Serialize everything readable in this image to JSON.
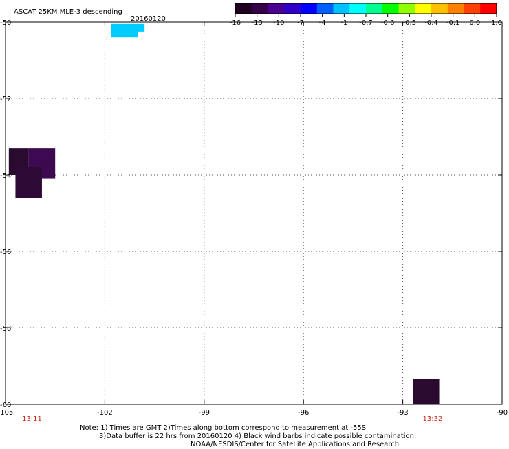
{
  "header": {
    "product": "ASCAT 25KM MLE-3 descending",
    "date": "20160120"
  },
  "colorbar": {
    "colors": [
      "#200020",
      "#360048",
      "#4a0090",
      "#3000c8",
      "#0000ff",
      "#0060ff",
      "#00c0ff",
      "#00ffff",
      "#00ff90",
      "#00ff00",
      "#90ff00",
      "#ffff00",
      "#ffc000",
      "#ff8000",
      "#ff4000",
      "#ff0000"
    ],
    "tick_labels": [
      "-16",
      "-13",
      "-10",
      "-7",
      "-4",
      "-1",
      "-0.7",
      "-0.6",
      "-0.5",
      "-0.4",
      "-0.1",
      "0.0",
      "1.0"
    ]
  },
  "chart_data": {
    "type": "heatmap",
    "x_ticks": [
      -105,
      -102,
      -99,
      -96,
      -93,
      -90
    ],
    "y_ticks": [
      -50,
      -52,
      -54,
      -56,
      -58,
      -60
    ],
    "xlim": [
      -105,
      -90
    ],
    "ylim": [
      -60,
      -50
    ],
    "grid": true,
    "cells": [
      {
        "lon": [
          -104.9,
          -104.3
        ],
        "lat": [
          -53.3,
          -54.0
        ],
        "color": "#2a0a2e"
      },
      {
        "lon": [
          -104.3,
          -103.5
        ],
        "lat": [
          -53.3,
          -54.1
        ],
        "color": "#3d0a52"
      },
      {
        "lon": [
          -104.7,
          -103.9
        ],
        "lat": [
          -53.8,
          -54.6
        ],
        "color": "#2e0a36"
      },
      {
        "lon": [
          -101.8,
          -100.8
        ],
        "lat": [
          -50.05,
          -50.25
        ],
        "color": "#00ccff"
      },
      {
        "lon": [
          -101.8,
          -101.0
        ],
        "lat": [
          -50.2,
          -50.4
        ],
        "color": "#00ccff"
      },
      {
        "lon": [
          -92.7,
          -91.9
        ],
        "lat": [
          -59.35,
          -60.0
        ],
        "color": "#2a0a2e"
      }
    ],
    "time_labels": [
      {
        "lon": -104.2,
        "text": "13:11"
      },
      {
        "lon": -92.1,
        "text": "13:32"
      }
    ]
  },
  "footer": {
    "line1": "Note: 1) Times are GMT 2)Times along bottom correspond to measurement at -55S",
    "line2": "3)Data buffer is 22 hrs from 20160120 4) Black wind barbs indicate possible contamination",
    "line3": "NOAA/NESDIS/Center for Satellite Applications and Research"
  }
}
